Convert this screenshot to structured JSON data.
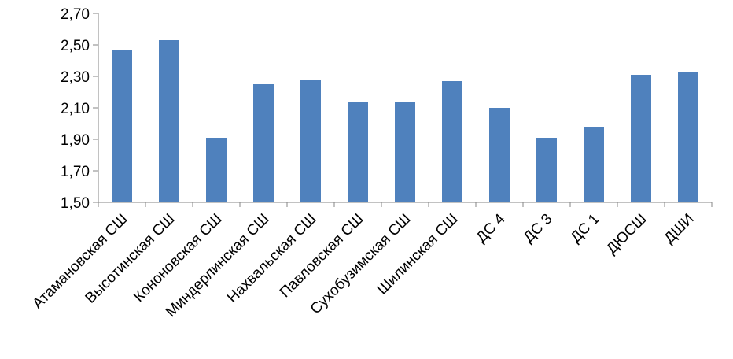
{
  "chart_data": {
    "type": "bar",
    "title": "",
    "xlabel": "",
    "ylabel": "",
    "categories": [
      "Атамановская СШ",
      "Высотинская СШ",
      "Кононовская СШ",
      "Миндерлинская СШ",
      "Нахвальская СШ",
      "Павловская СШ",
      "Сухобузимская СШ",
      "Шилинская СШ",
      "ДС 4",
      "ДС 3",
      "ДС 1",
      "ДЮСШ",
      "ДШИ"
    ],
    "values": [
      2.47,
      2.53,
      1.91,
      2.25,
      2.28,
      2.14,
      2.14,
      2.27,
      2.1,
      1.91,
      1.98,
      2.31,
      2.33
    ],
    "ylim": [
      1.5,
      2.7
    ],
    "yticks": [
      "1,50",
      "1,70",
      "1,90",
      "2,10",
      "2,30",
      "2,50",
      "2,70"
    ],
    "grid": false,
    "legend": "none",
    "colors": {
      "bar": "#4F81BD",
      "axis": "#868686"
    }
  }
}
